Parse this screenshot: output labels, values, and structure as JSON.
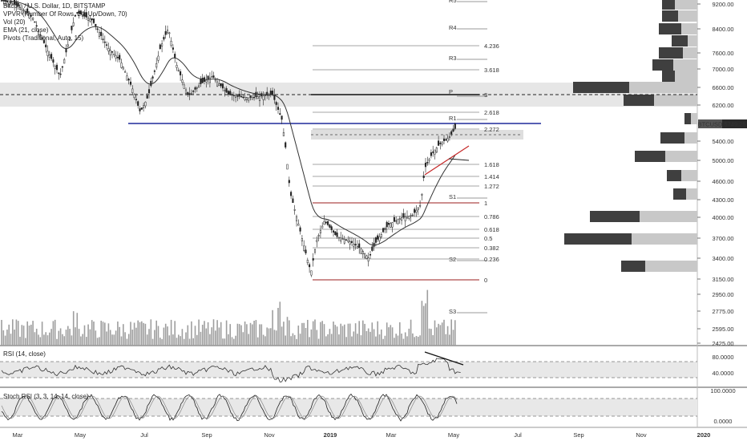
{
  "legend": {
    "symbol": "Bitcoin / U.S. Dollar, 1D, BITSTAMP",
    "vpvr": "VPVR (Number Of Rows, 24, Up/Down, 70)",
    "vol": "Vol (20)",
    "ema": "EMA (21, close)",
    "pivots": "Pivots (Traditional, Auto, 15)"
  },
  "price_tag": {
    "symbol": "BTCUSD",
    "value": "5749.25"
  },
  "rsi_label": "RSI (14, close)",
  "stoch_label": "Stoch RSI (3, 3, 14, 14, close)",
  "colors": {
    "accent_blue": "#1f2a9c",
    "fib_red": "#9b1c1c",
    "trend_red": "#c62828",
    "zone": "#d6d6d6",
    "dark_bar": "#3f3f3f",
    "light_bar": "#c8c8c8"
  },
  "chart_data": {
    "type": "line",
    "price_axis_ticks": [
      "9200.00",
      "8400.00",
      "7600.00",
      "7000.00",
      "6600.00",
      "6200.00",
      "5400.00",
      "5000.00",
      "4600.00",
      "4300.00",
      "4000.00",
      "3700.00",
      "3400.00",
      "3150.00",
      "2950.00",
      "2775.00",
      "2595.00",
      "2425.00"
    ],
    "rsi_axis_ticks": [
      "80.0000",
      "40.0000"
    ],
    "stoch_axis_ticks": [
      "100.0000",
      "0.0000"
    ],
    "time_axis_ticks": [
      "Mar",
      "May",
      "Jul",
      "Sep",
      "Nov",
      "2019",
      "Mar",
      "May",
      "Jul",
      "Sep",
      "Nov",
      "2020"
    ],
    "pivot_labels": [
      "R5",
      "R4",
      "R3",
      "P",
      "R1",
      "S1",
      "S2",
      "S3"
    ],
    "fib_labels": [
      "4.236",
      "3.618",
      "3",
      "2.618",
      "2.272",
      "1.618",
      "1.414",
      "1.272",
      "1",
      "0.786",
      "0.618",
      "0.5",
      "0.382",
      "0.236",
      "0"
    ],
    "series": [
      {
        "name": "Bitcoin / U.S. Dollar",
        "x": [
          "Mar",
          "Apr",
          "May",
          "Jun",
          "Jul",
          "Aug",
          "Sep",
          "Oct",
          "Nov",
          "Dec",
          "2019",
          "Feb",
          "Mar",
          "Apr",
          "May"
        ],
        "values": [
          9200,
          8700,
          8300,
          6900,
          6300,
          6700,
          6500,
          6450,
          5500,
          3300,
          3800,
          3500,
          3950,
          5000,
          5749
        ]
      }
    ],
    "volume_profile": [
      {
        "price": "9200",
        "up": 16,
        "down": 28
      },
      {
        "price": "8800",
        "up": 20,
        "down": 24
      },
      {
        "price": "8400",
        "up": 28,
        "down": 20
      },
      {
        "price": "8000",
        "up": 20,
        "down": 12
      },
      {
        "price": "7600",
        "up": 30,
        "down": 18
      },
      {
        "price": "7200",
        "up": 26,
        "down": 30
      },
      {
        "price": "6800",
        "up": 16,
        "down": 28
      },
      {
        "price": "6600",
        "up": 70,
        "down": 85
      },
      {
        "price": "6200",
        "up": 38,
        "down": 54
      },
      {
        "price": "5800",
        "up": 8,
        "down": 8
      },
      {
        "price": "5400",
        "up": 30,
        "down": 16
      },
      {
        "price": "5000",
        "up": 38,
        "down": 40
      },
      {
        "price": "4600",
        "up": 18,
        "down": 20
      },
      {
        "price": "4300",
        "up": 16,
        "down": 14
      },
      {
        "price": "4000",
        "up": 62,
        "down": 72
      },
      {
        "price": "3700",
        "up": 84,
        "down": 82
      },
      {
        "price": "3400",
        "up": 30,
        "down": 65
      }
    ]
  }
}
